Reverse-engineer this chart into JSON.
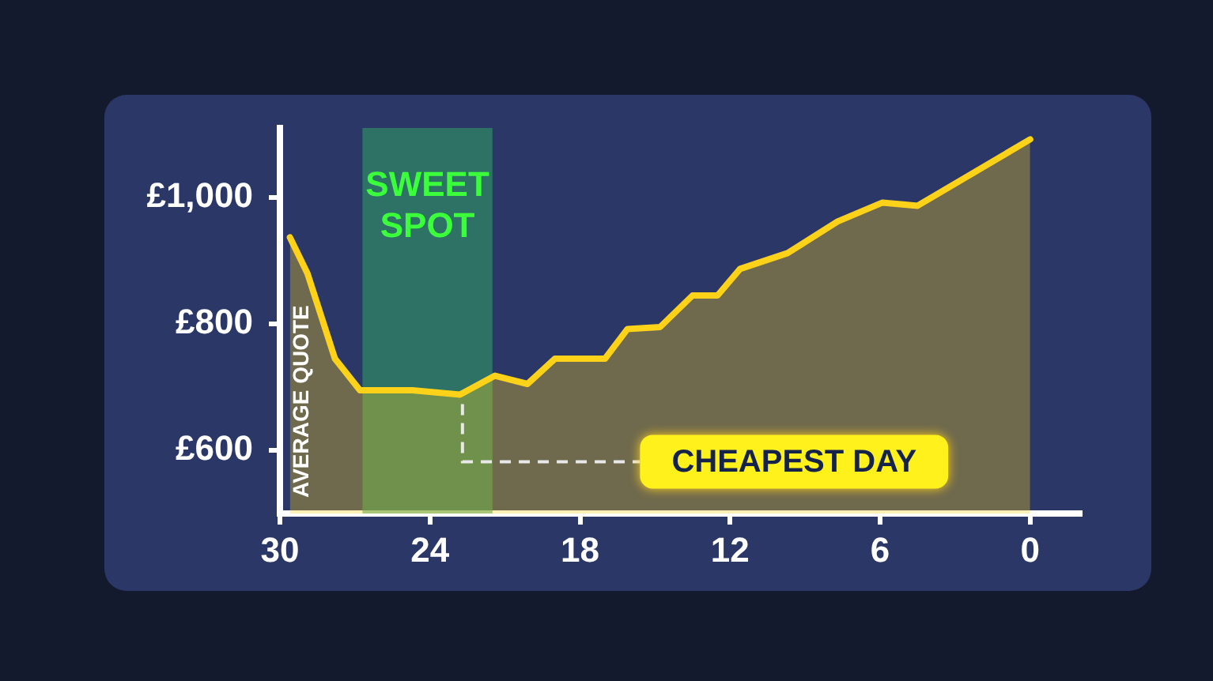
{
  "chart_data": {
    "type": "area",
    "ylabel": "AVERAGE QUOTE",
    "x": [
      29.6,
      28.9,
      27.8,
      26.8,
      24.7,
      22.8,
      21.4,
      20.1,
      19,
      17,
      16.1,
      14.8,
      13.5,
      12.5,
      11.6,
      9.7,
      7.7,
      5.9,
      4.5,
      0
    ],
    "series": [
      {
        "color": "#ffd21a",
        "values": [
          937,
          880,
          745,
          695,
          695,
          688,
          718,
          705,
          745,
          745,
          792,
          795,
          845,
          845,
          887,
          912,
          962,
          992,
          987,
          1092
        ]
      }
    ],
    "xlim": [
      30,
      -2
    ],
    "xticks": [
      30,
      24,
      18,
      12,
      6,
      0
    ],
    "ylim": [
      500,
      1110
    ],
    "yticks": [
      {
        "value": 1000,
        "label": "£1,000"
      },
      {
        "value": 800,
        "label": "£800"
      },
      {
        "value": 600,
        "label": "£600"
      }
    ],
    "bands": [
      {
        "axis": "x",
        "from": 26.7,
        "to": 21.5,
        "label": "SWEET SPOT",
        "color": "#2e9a62"
      }
    ],
    "annotations": [
      {
        "text": "CHEAPEST DAY",
        "x": 22.7,
        "y": 688
      }
    ],
    "grid": false,
    "legend": false,
    "marker": "none",
    "line_style": "solid"
  }
}
